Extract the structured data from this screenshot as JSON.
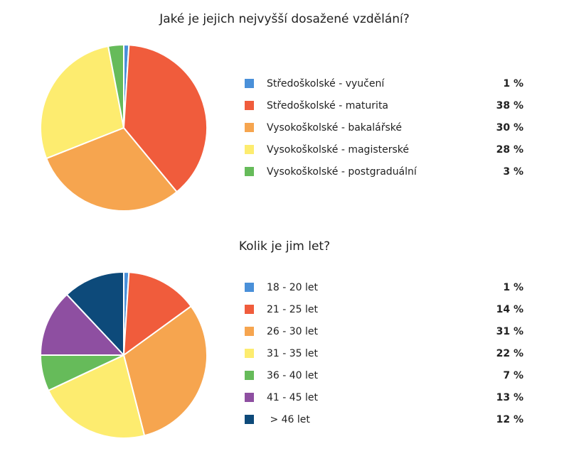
{
  "chart_data": [
    {
      "type": "pie",
      "title": "Jaké je jejich nejvyšší dosažené vzdělání?",
      "series": [
        {
          "label": "Středoškolské - vyučení",
          "value": 1,
          "display": "1 %",
          "color": "#4a90d9"
        },
        {
          "label": "Středoškolské - maturita",
          "value": 38,
          "display": "38 %",
          "color": "#f05c3c"
        },
        {
          "label": "Vysokoškolské - bakalářské",
          "value": 30,
          "display": "30 %",
          "color": "#f6a54f"
        },
        {
          "label": "Vysokoškolské - magisterské",
          "value": 28,
          "display": "28 %",
          "color": "#fdec6f"
        },
        {
          "label": "Vysokoškolské - postgraduální",
          "value": 3,
          "display": "3 %",
          "color": "#66bb5a"
        }
      ],
      "legend_position": "right"
    },
    {
      "type": "pie",
      "title": "Kolik je jim let?",
      "series": [
        {
          "label": "18 - 20 let",
          "value": 1,
          "display": "1 %",
          "color": "#4a90d9"
        },
        {
          "label": "21 - 25 let",
          "value": 14,
          "display": "14 %",
          "color": "#f05c3c"
        },
        {
          "label": "26 - 30 let",
          "value": 31,
          "display": "31 %",
          "color": "#f6a54f"
        },
        {
          "label": "31 - 35 let",
          "value": 22,
          "display": "22 %",
          "color": "#fdec6f"
        },
        {
          "label": "36 - 40 let",
          "value": 7,
          "display": "7 %",
          "color": "#66bb5a"
        },
        {
          "label": "41 - 45 let",
          "value": 13,
          "display": "13 %",
          "color": "#8e4fa1"
        },
        {
          "label": " > 46 let",
          "value": 12,
          "display": "12 %",
          "color": "#0d4a7a"
        }
      ],
      "legend_position": "right"
    }
  ]
}
